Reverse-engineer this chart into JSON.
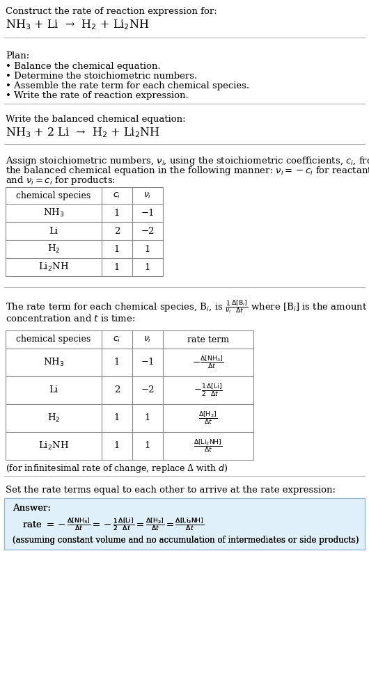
{
  "bg_color": "#ffffff",
  "fig_w": 5.3,
  "fig_h": 9.76,
  "dpi": 100,
  "font_family": "DejaVu Serif",
  "sections": {
    "s1_title": "Construct the rate of reaction expression for:",
    "s1_reaction": "NH$_3$ + Li  →  H$_2$ + Li$_2$NH",
    "s2_plan_header": "Plan:",
    "s2_bullets": [
      "• Balance the chemical equation.",
      "• Determine the stoichiometric numbers.",
      "• Assemble the rate term for each chemical species.",
      "• Write the rate of reaction expression."
    ],
    "s3_balanced_header": "Write the balanced chemical equation:",
    "s3_reaction": "NH$_3$ + 2 Li  →  H$_2$ + Li$_2$NH",
    "s4_assign_lines": [
      "Assign stoichiometric numbers, $\\nu_i$, using the stoichiometric coefficients, $c_i$, from",
      "the balanced chemical equation in the following manner: $\\nu_i = -c_i$ for reactants",
      "and $\\nu_i = c_i$ for products:"
    ],
    "s4_table_headers": [
      "chemical species",
      "$c_i$",
      "$\\nu_i$"
    ],
    "s4_table_rows": [
      [
        "NH$_3$",
        "1",
        "−1"
      ],
      [
        "Li",
        "2",
        "−2"
      ],
      [
        "H$_2$",
        "1",
        "1"
      ],
      [
        "Li$_2$NH",
        "1",
        "1"
      ]
    ],
    "s5_rate_lines": [
      "The rate term for each chemical species, B$_i$, is $\\frac{1}{\\nu_i}\\frac{\\Delta[\\mathrm{B}_i]}{\\Delta t}$ where [B$_i$] is the amount",
      "concentration and $t$ is time:"
    ],
    "s5_table_headers": [
      "chemical species",
      "$c_i$",
      "$\\nu_i$",
      "rate term"
    ],
    "s5_table_rows": [
      [
        "NH$_3$",
        "1",
        "−1",
        "$-\\frac{\\Delta[\\mathrm{NH_3}]}{\\Delta t}$"
      ],
      [
        "Li",
        "2",
        "−2",
        "$-\\frac{1}{2}\\frac{\\Delta[\\mathrm{Li}]}{\\Delta t}$"
      ],
      [
        "H$_2$",
        "1",
        "1",
        "$\\frac{\\Delta[\\mathrm{H_2}]}{\\Delta t}$"
      ],
      [
        "Li$_2$NH",
        "1",
        "1",
        "$\\frac{\\Delta[\\mathrm{Li_2NH}]}{\\Delta t}$"
      ]
    ],
    "s5_delta_note": "(for infinitesimal rate of change, replace Δ with $d$)",
    "s6_set_text": "Set the rate terms equal to each other to arrive at the rate expression:",
    "s6_answer_label": "Answer:",
    "s6_rate_expr": "rate $= -\\frac{\\Delta[\\mathrm{NH_3}]}{\\Delta t} = -\\frac{1}{2}\\frac{\\Delta[\\mathrm{Li}]}{\\Delta t} = \\frac{\\Delta[\\mathrm{H_2}]}{\\Delta t} = \\frac{\\Delta[\\mathrm{Li_2NH}]}{\\Delta t}$",
    "s6_assuming": "(assuming constant volume and no accumulation of intermediates or side products)"
  },
  "answer_box_bg": "#dff0fa",
  "answer_box_border": "#90bcd8",
  "divider_color": "#aaaaaa",
  "table_border_color": "#888888"
}
